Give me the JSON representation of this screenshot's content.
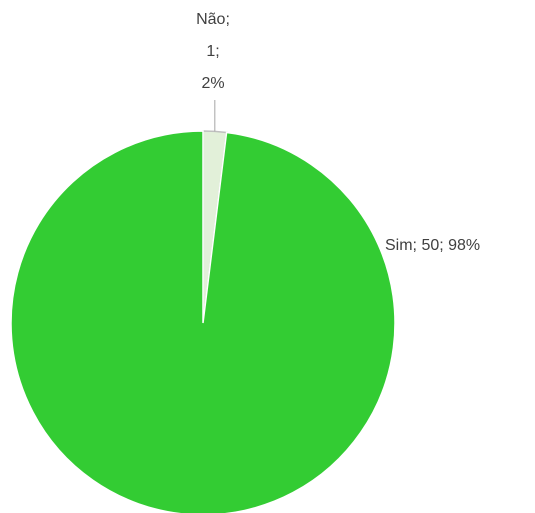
{
  "chart_data": {
    "type": "pie",
    "categories": [
      "Não",
      "Sim"
    ],
    "values": [
      1,
      50
    ],
    "colors": [
      "#e2f0d9",
      "#33cc33"
    ],
    "labels": [
      [
        "Não;",
        "1;",
        "2%"
      ],
      [
        "Sim; 50; 98%"
      ]
    ]
  }
}
